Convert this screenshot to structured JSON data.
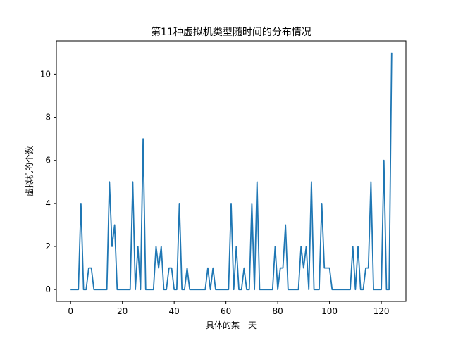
{
  "chart_data": {
    "type": "line",
    "title": "第11种虚拟机类型随时间的分布情况",
    "xlabel": "具体的某一天",
    "ylabel": "虚拟机的个数",
    "xlim": [
      -5.5,
      129.5
    ],
    "ylim": [
      -0.55,
      11.55
    ],
    "xticks": [
      0,
      20,
      40,
      60,
      80,
      100,
      120
    ],
    "yticks": [
      0,
      2,
      4,
      6,
      8,
      10
    ],
    "grid": false,
    "series": [
      {
        "color": "#1f77b4",
        "x": [
          0,
          1,
          2,
          3,
          4,
          5,
          6,
          7,
          8,
          9,
          10,
          11,
          12,
          13,
          14,
          15,
          16,
          17,
          18,
          19,
          20,
          21,
          22,
          23,
          24,
          25,
          26,
          27,
          28,
          29,
          30,
          31,
          32,
          33,
          34,
          35,
          36,
          37,
          38,
          39,
          40,
          41,
          42,
          43,
          44,
          45,
          46,
          47,
          48,
          49,
          50,
          51,
          52,
          53,
          54,
          55,
          56,
          57,
          58,
          59,
          60,
          61,
          62,
          63,
          64,
          65,
          66,
          67,
          68,
          69,
          70,
          71,
          72,
          73,
          74,
          75,
          76,
          77,
          78,
          79,
          80,
          81,
          82,
          83,
          84,
          85,
          86,
          87,
          88,
          89,
          90,
          91,
          92,
          93,
          94,
          95,
          96,
          97,
          98,
          99,
          100,
          101,
          102,
          103,
          104,
          105,
          106,
          107,
          108,
          109,
          110,
          111,
          112,
          113,
          114,
          115,
          116,
          117,
          118,
          119,
          120,
          121,
          122,
          123,
          124
        ],
        "y": [
          0,
          0,
          0,
          0,
          4,
          0,
          0,
          1,
          1,
          0,
          0,
          0,
          0,
          0,
          0,
          5,
          2,
          3,
          0,
          0,
          0,
          0,
          0,
          0,
          5,
          0,
          2,
          0,
          7,
          0,
          0,
          0,
          0,
          2,
          1,
          2,
          0,
          0,
          1,
          1,
          0,
          0,
          4,
          0,
          0,
          1,
          0,
          0,
          0,
          0,
          0,
          0,
          0,
          1,
          0,
          1,
          0,
          0,
          0,
          0,
          0,
          0,
          4,
          0,
          2,
          0,
          0,
          1,
          0,
          0,
          4,
          0,
          5,
          0,
          0,
          0,
          0,
          0,
          0,
          2,
          0,
          1,
          1,
          3,
          0,
          0,
          0,
          0,
          0,
          2,
          1,
          2,
          0,
          5,
          0,
          0,
          0,
          4,
          1,
          1,
          1,
          0,
          0,
          0,
          0,
          0,
          0,
          0,
          0,
          2,
          0,
          2,
          0,
          0,
          1,
          1,
          5,
          0,
          0,
          0,
          0,
          6,
          0,
          0,
          11
        ]
      }
    ]
  }
}
